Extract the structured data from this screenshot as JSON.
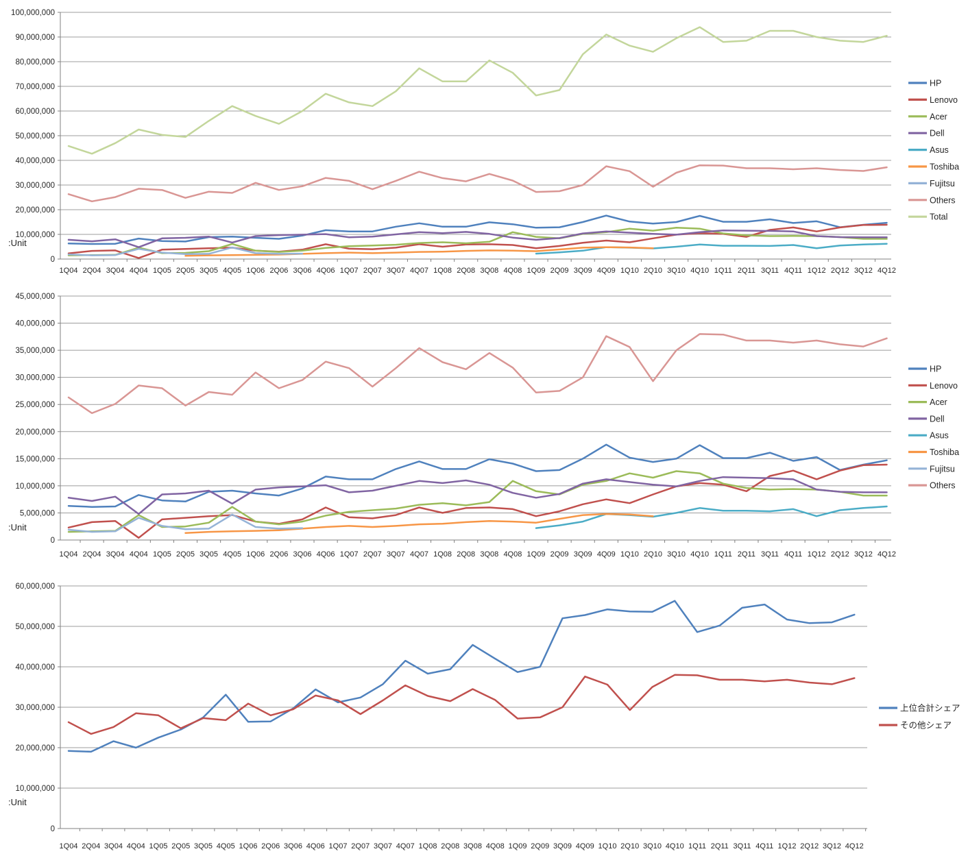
{
  "unit_label": ":Unit",
  "values_unit": "units (series values stored in millions of units)",
  "quarters": [
    "1Q04",
    "2Q04",
    "3Q04",
    "4Q04",
    "1Q05",
    "2Q05",
    "3Q05",
    "4Q05",
    "1Q06",
    "2Q06",
    "3Q06",
    "4Q06",
    "1Q07",
    "2Q07",
    "3Q07",
    "4Q07",
    "1Q08",
    "2Q08",
    "3Q08",
    "4Q08",
    "1Q09",
    "2Q09",
    "3Q09",
    "4Q09",
    "1Q10",
    "2Q10",
    "3Q10",
    "4Q10",
    "1Q11",
    "2Q11",
    "3Q11",
    "4Q11",
    "1Q12",
    "2Q12",
    "3Q12",
    "4Q12"
  ],
  "chart_data": [
    {
      "type": "line",
      "title": "",
      "xlabel": "",
      "ylabel": ":Unit",
      "ylim": [
        0,
        100000000
      ],
      "ytick_step": 10000000,
      "grid": true,
      "legend_position": "right",
      "categories_ref": "quarters",
      "series": [
        {
          "name": "HP",
          "color": "#4F81BD",
          "values_millions": [
            6.3,
            6.1,
            6.2,
            8.3,
            7.3,
            7.1,
            8.9,
            9.1,
            8.6,
            8.2,
            9.5,
            11.7,
            11.2,
            11.2,
            13.1,
            14.5,
            13.1,
            13.1,
            14.9,
            14.1,
            12.7,
            12.9,
            15.0,
            17.6,
            15.2,
            14.4,
            15.0,
            17.5,
            15.1,
            15.1,
            16.1,
            14.6,
            15.3,
            12.9,
            13.9,
            14.7
          ]
        },
        {
          "name": "Lenovo",
          "color": "#C0504D",
          "values_millions": [
            2.3,
            3.3,
            3.5,
            0.4,
            3.8,
            4.1,
            4.4,
            4.6,
            3.4,
            3.0,
            3.8,
            6.0,
            4.2,
            4.0,
            4.6,
            6.0,
            5.0,
            5.9,
            6.0,
            5.7,
            4.4,
            5.3,
            6.6,
            7.5,
            6.8,
            8.4,
            9.9,
            10.5,
            10.2,
            9.0,
            11.8,
            12.8,
            11.2,
            12.8,
            13.8,
            13.9
          ]
        },
        {
          "name": "Acer",
          "color": "#9BBB59",
          "values_millions": [
            1.5,
            1.6,
            1.7,
            4.6,
            2.4,
            2.5,
            3.2,
            6.1,
            3.4,
            2.9,
            3.4,
            4.5,
            5.2,
            5.5,
            5.8,
            6.5,
            6.8,
            6.4,
            7.0,
            10.9,
            9.0,
            8.4,
            10.2,
            10.9,
            12.3,
            11.5,
            12.7,
            12.3,
            10.4,
            9.6,
            9.3,
            9.4,
            9.3,
            8.9,
            8.2,
            8.2
          ]
        },
        {
          "name": "Dell",
          "color": "#8064A2",
          "values_millions": [
            7.8,
            7.2,
            8.0,
            4.8,
            8.4,
            8.6,
            9.1,
            6.7,
            9.3,
            9.7,
            9.9,
            10.1,
            8.8,
            9.1,
            10.0,
            10.9,
            10.5,
            11.0,
            10.2,
            8.7,
            7.8,
            8.5,
            10.4,
            11.2,
            10.7,
            10.2,
            9.9,
            10.9,
            11.6,
            11.5,
            11.4,
            11.2,
            9.3,
            8.9,
            8.8,
            8.8
          ]
        },
        {
          "name": "Asus",
          "color": "#4BACC6",
          "values_millions": [
            null,
            null,
            null,
            null,
            null,
            null,
            null,
            null,
            null,
            null,
            null,
            null,
            null,
            null,
            null,
            null,
            null,
            null,
            null,
            null,
            2.2,
            2.7,
            3.4,
            4.8,
            4.6,
            4.3,
            5.0,
            5.9,
            5.4,
            5.4,
            5.3,
            5.7,
            4.4,
            5.5,
            5.9,
            6.2
          ]
        },
        {
          "name": "Toshiba",
          "color": "#F79646",
          "values_millions": [
            null,
            null,
            null,
            null,
            null,
            1.3,
            1.5,
            1.6,
            1.7,
            1.8,
            2.1,
            2.4,
            2.6,
            2.4,
            2.6,
            2.9,
            3.0,
            3.3,
            3.5,
            3.4,
            3.2,
            3.9,
            4.6,
            4.8,
            4.7,
            4.4,
            null,
            null,
            null,
            null,
            null,
            null,
            null,
            null,
            null,
            null
          ]
        },
        {
          "name": "Fujitsu",
          "color": "#95B3D7",
          "values_millions": [
            1.9,
            1.5,
            1.6,
            4.1,
            2.6,
            2.0,
            2.1,
            4.7,
            2.4,
            2.1,
            2.2,
            null,
            null,
            null,
            null,
            null,
            null,
            null,
            null,
            null,
            null,
            null,
            null,
            null,
            null,
            null,
            null,
            null,
            null,
            null,
            null,
            null,
            null,
            null,
            null,
            null
          ]
        },
        {
          "name": "Others",
          "color": "#D99694",
          "values_millions": [
            26.3,
            23.4,
            25.1,
            28.5,
            28.0,
            24.8,
            27.3,
            26.8,
            30.9,
            28.0,
            29.5,
            32.9,
            31.7,
            28.3,
            31.7,
            35.4,
            32.8,
            31.5,
            34.5,
            31.8,
            27.2,
            27.5,
            30.0,
            37.6,
            35.6,
            29.3,
            35.0,
            38.0,
            37.9,
            36.8,
            36.8,
            36.4,
            36.8,
            36.1,
            35.7,
            37.2
          ]
        },
        {
          "name": "Total",
          "color": "#C3D69B",
          "values_millions": [
            45.8,
            42.7,
            47.0,
            52.5,
            50.3,
            49.5,
            56.0,
            62.0,
            58.0,
            54.8,
            60.0,
            67.0,
            63.5,
            62.0,
            68.0,
            77.3,
            72.0,
            72.0,
            80.5,
            75.5,
            66.3,
            68.5,
            83.0,
            91.0,
            86.5,
            84.0,
            89.5,
            94.0,
            88.0,
            88.5,
            92.5,
            92.5,
            90.0,
            88.5,
            88.0,
            90.5
          ]
        }
      ]
    },
    {
      "type": "line",
      "title": "",
      "xlabel": "",
      "ylabel": ":Unit",
      "ylim": [
        0,
        45000000
      ],
      "ytick_step": 5000000,
      "grid": true,
      "legend_position": "right",
      "categories_ref": "quarters",
      "series": [
        {
          "name": "HP",
          "color": "#4F81BD",
          "values_millions": [
            6.3,
            6.1,
            6.2,
            8.3,
            7.3,
            7.1,
            8.9,
            9.1,
            8.6,
            8.2,
            9.5,
            11.7,
            11.2,
            11.2,
            13.1,
            14.5,
            13.1,
            13.1,
            14.9,
            14.1,
            12.7,
            12.9,
            15.0,
            17.6,
            15.2,
            14.4,
            15.0,
            17.5,
            15.1,
            15.1,
            16.1,
            14.6,
            15.3,
            12.9,
            13.9,
            14.7
          ]
        },
        {
          "name": "Lenovo",
          "color": "#C0504D",
          "values_millions": [
            2.3,
            3.3,
            3.5,
            0.4,
            3.8,
            4.1,
            4.4,
            4.6,
            3.4,
            3.0,
            3.8,
            6.0,
            4.2,
            4.0,
            4.6,
            6.0,
            5.0,
            5.9,
            6.0,
            5.7,
            4.4,
            5.3,
            6.6,
            7.5,
            6.8,
            8.4,
            9.9,
            10.5,
            10.2,
            9.0,
            11.8,
            12.8,
            11.2,
            12.8,
            13.8,
            13.9
          ]
        },
        {
          "name": "Acer",
          "color": "#9BBB59",
          "values_millions": [
            1.5,
            1.6,
            1.7,
            4.6,
            2.4,
            2.5,
            3.2,
            6.1,
            3.4,
            2.9,
            3.4,
            4.5,
            5.2,
            5.5,
            5.8,
            6.5,
            6.8,
            6.4,
            7.0,
            10.9,
            9.0,
            8.4,
            10.2,
            10.9,
            12.3,
            11.5,
            12.7,
            12.3,
            10.4,
            9.6,
            9.3,
            9.4,
            9.3,
            8.9,
            8.2,
            8.2
          ]
        },
        {
          "name": "Dell",
          "color": "#8064A2",
          "values_millions": [
            7.8,
            7.2,
            8.0,
            4.8,
            8.4,
            8.6,
            9.1,
            6.7,
            9.3,
            9.7,
            9.9,
            10.1,
            8.8,
            9.1,
            10.0,
            10.9,
            10.5,
            11.0,
            10.2,
            8.7,
            7.8,
            8.5,
            10.4,
            11.2,
            10.7,
            10.2,
            9.9,
            10.9,
            11.6,
            11.5,
            11.4,
            11.2,
            9.3,
            8.9,
            8.8,
            8.8
          ]
        },
        {
          "name": "Asus",
          "color": "#4BACC6",
          "values_millions": [
            null,
            null,
            null,
            null,
            null,
            null,
            null,
            null,
            null,
            null,
            null,
            null,
            null,
            null,
            null,
            null,
            null,
            null,
            null,
            null,
            2.2,
            2.7,
            3.4,
            4.8,
            4.6,
            4.3,
            5.0,
            5.9,
            5.4,
            5.4,
            5.3,
            5.7,
            4.4,
            5.5,
            5.9,
            6.2
          ]
        },
        {
          "name": "Toshiba",
          "color": "#F79646",
          "values_millions": [
            null,
            null,
            null,
            null,
            null,
            1.3,
            1.5,
            1.6,
            1.7,
            1.8,
            2.1,
            2.4,
            2.6,
            2.4,
            2.6,
            2.9,
            3.0,
            3.3,
            3.5,
            3.4,
            3.2,
            3.9,
            4.6,
            4.8,
            4.7,
            4.4,
            null,
            null,
            null,
            null,
            null,
            null,
            null,
            null,
            null,
            null
          ]
        },
        {
          "name": "Fujitsu",
          "color": "#95B3D7",
          "values_millions": [
            1.9,
            1.5,
            1.6,
            4.1,
            2.6,
            2.0,
            2.1,
            4.7,
            2.4,
            2.1,
            2.2,
            null,
            null,
            null,
            null,
            null,
            null,
            null,
            null,
            null,
            null,
            null,
            null,
            null,
            null,
            null,
            null,
            null,
            null,
            null,
            null,
            null,
            null,
            null,
            null,
            null
          ]
        },
        {
          "name": "Others",
          "color": "#D99694",
          "values_millions": [
            26.3,
            23.4,
            25.1,
            28.5,
            28.0,
            24.8,
            27.3,
            26.8,
            30.9,
            28.0,
            29.5,
            32.9,
            31.7,
            28.3,
            31.7,
            35.4,
            32.8,
            31.5,
            34.5,
            31.8,
            27.2,
            27.5,
            30.0,
            37.6,
            35.6,
            29.3,
            35.0,
            38.0,
            37.9,
            36.8,
            36.8,
            36.4,
            36.8,
            36.1,
            35.7,
            37.2
          ]
        }
      ]
    },
    {
      "type": "line",
      "title": "",
      "xlabel": "",
      "ylabel": ":Unit",
      "ylim": [
        0,
        60000000
      ],
      "ytick_step": 10000000,
      "grid": true,
      "legend_position": "right",
      "categories_ref": "quarters",
      "series": [
        {
          "name": "上位合計シェア",
          "color": "#4F81BD",
          "values_millions": [
            19.2,
            19.0,
            21.6,
            20.0,
            22.5,
            24.5,
            27.5,
            33.1,
            26.4,
            26.5,
            29.7,
            34.4,
            31.2,
            32.4,
            35.7,
            41.5,
            38.3,
            39.4,
            45.4,
            42.0,
            38.7,
            40.0,
            52.0,
            52.8,
            54.2,
            53.7,
            53.6,
            56.3,
            48.6,
            50.2,
            54.6,
            55.4,
            51.7,
            50.8,
            51.0,
            52.9
          ]
        },
        {
          "name": "その他シェア",
          "color": "#C0504D",
          "values_millions": [
            26.3,
            23.4,
            25.1,
            28.5,
            28.0,
            24.8,
            27.3,
            26.8,
            30.9,
            28.0,
            29.5,
            32.9,
            31.7,
            28.3,
            31.7,
            35.4,
            32.8,
            31.5,
            34.5,
            31.8,
            27.2,
            27.5,
            30.0,
            37.6,
            35.6,
            29.3,
            35.0,
            38.0,
            37.9,
            36.8,
            36.8,
            36.4,
            36.8,
            36.1,
            35.7,
            37.2
          ]
        }
      ]
    }
  ]
}
